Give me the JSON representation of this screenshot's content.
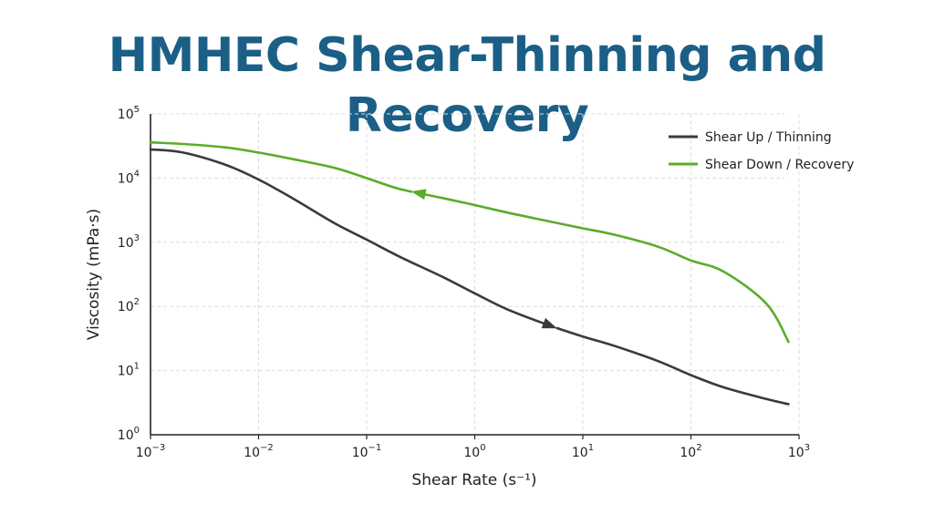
{
  "chart_data": {
    "type": "line",
    "title": "HMHEC Shear-Thinning and Recovery",
    "xlabel": "Shear Rate (s⁻¹)",
    "ylabel": "Viscosity (mPa·s)",
    "x_scale": "log",
    "y_scale": "log",
    "xlim": [
      0.001,
      1000
    ],
    "ylim": [
      1,
      100000
    ],
    "x_ticks": [
      {
        "base": "10",
        "exp": "−3"
      },
      {
        "base": "10",
        "exp": "−2"
      },
      {
        "base": "10",
        "exp": "−1"
      },
      {
        "base": "10",
        "exp": "0"
      },
      {
        "base": "10",
        "exp": "1"
      },
      {
        "base": "10",
        "exp": "2"
      },
      {
        "base": "10",
        "exp": "3"
      }
    ],
    "y_ticks": [
      {
        "base": "10",
        "exp": "0"
      },
      {
        "base": "10",
        "exp": "1"
      },
      {
        "base": "10",
        "exp": "2"
      },
      {
        "base": "10",
        "exp": "3"
      },
      {
        "base": "10",
        "exp": "4"
      },
      {
        "base": "10",
        "exp": "5"
      }
    ],
    "grid": true,
    "legend_position": "top-right",
    "series": [
      {
        "name": "Shear Up / Thinning",
        "color": "#3a3a3c",
        "direction": "increasing shear rate",
        "x": [
          0.001,
          0.002,
          0.005,
          0.01,
          0.02,
          0.05,
          0.1,
          0.2,
          0.5,
          1,
          2,
          5,
          10,
          20,
          50,
          100,
          200,
          500,
          800
        ],
        "y": [
          28000,
          25000,
          16000,
          9500,
          5000,
          2000,
          1100,
          600,
          290,
          160,
          90,
          50,
          34,
          24,
          14,
          8.5,
          5.5,
          3.6,
          3.0
        ]
      },
      {
        "name": "Shear Down / Recovery",
        "color": "#5aac2a",
        "direction": "decreasing shear rate",
        "x": [
          800,
          500,
          200,
          100,
          50,
          20,
          10,
          5,
          2,
          1,
          0.5,
          0.2,
          0.1,
          0.05,
          0.02,
          0.01,
          0.005,
          0.002,
          0.001
        ],
        "y": [
          28,
          110,
          350,
          520,
          850,
          1300,
          1650,
          2100,
          2900,
          3800,
          4900,
          6800,
          10000,
          14500,
          20000,
          25000,
          30000,
          34000,
          36000
        ]
      }
    ]
  }
}
